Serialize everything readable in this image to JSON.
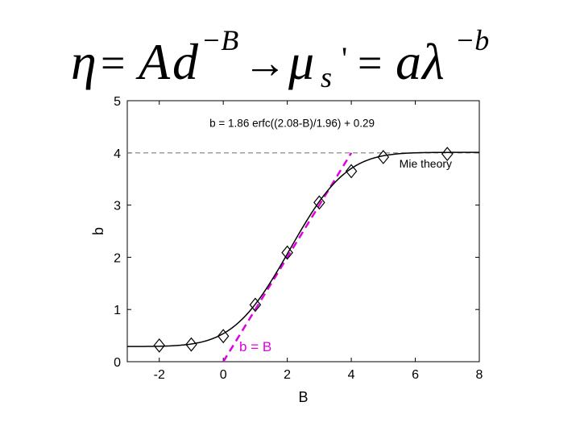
{
  "slide": {
    "equation": {
      "lhs_eta": "η",
      "eq1": "=",
      "A": "A",
      "d": "d",
      "exp_minus_B": "−B",
      "arrow": "→",
      "mu": "μ",
      "sub_s": "s",
      "prime": "'",
      "eq2": "=",
      "a": "a",
      "lambda": "λ",
      "exp_minus_b": "−b"
    }
  },
  "chart_data": {
    "type": "line",
    "xlabel": "B",
    "ylabel": "b",
    "xlim": [
      -3,
      8
    ],
    "ylim": [
      0,
      5
    ],
    "xticks": [
      -2,
      0,
      2,
      4,
      6,
      8
    ],
    "yticks": [
      0,
      1,
      2,
      3,
      4,
      5
    ],
    "xtick_labels": [
      "-2",
      "0",
      "2",
      "4",
      "6",
      "8"
    ],
    "ytick_labels": [
      "0",
      "1",
      "2",
      "3",
      "4",
      "5"
    ],
    "grid": false,
    "fit_formula": "b = 1.86 erfc((2.08-B)/1.96) + 0.29",
    "fit_params": {
      "amplitude": 1.86,
      "center": 2.08,
      "width": 1.96,
      "offset": 0.29
    },
    "reference_line": {
      "y": 4,
      "style": "dashed",
      "color": "#7f7f7f",
      "label": "Mie theory"
    },
    "identity_line": {
      "label": "b = B",
      "color": "#e000e0",
      "x_range": [
        0,
        4
      ]
    },
    "series": [
      {
        "marker": "diamond",
        "x": [
          -2,
          -1,
          0,
          1,
          2,
          3,
          4,
          5,
          7
        ],
        "y": [
          0.31,
          0.33,
          0.49,
          1.09,
          2.09,
          3.05,
          3.65,
          3.92,
          3.98
        ]
      }
    ],
    "colors": {
      "fit": "#000000",
      "identity": "#e000e0",
      "reference": "#7f7f7f"
    }
  }
}
